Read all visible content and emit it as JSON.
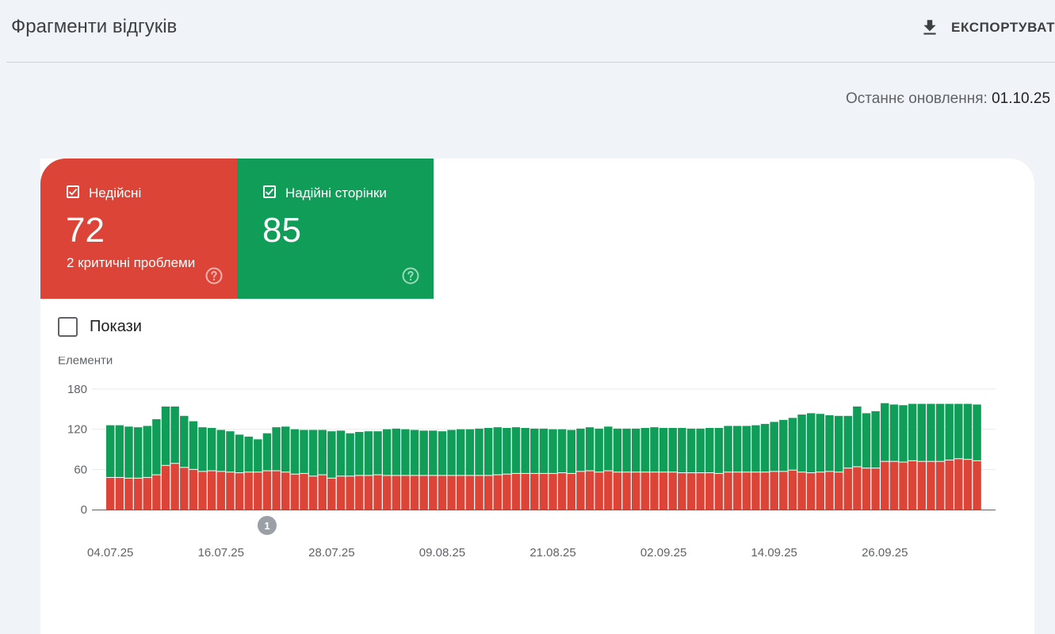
{
  "header": {
    "title": "Фрагменти відгуків",
    "export_label": "ЕКСПОРТУВАТИ"
  },
  "last_update": {
    "label": "Останнє оновлення:",
    "value": "01.10.25"
  },
  "tiles": {
    "invalid": {
      "label": "Недійсні",
      "count": "72",
      "subtitle": "2 критичні проблеми"
    },
    "valid": {
      "label": "Надійні сторінки",
      "count": "85"
    }
  },
  "show_toggle": {
    "label": "Покази"
  },
  "colors": {
    "invalid": "#db4437",
    "valid": "#0f9d58"
  },
  "chart_data": {
    "type": "bar",
    "stacked": true,
    "ylabel": "Елементи",
    "ylim": [
      0,
      180
    ],
    "yticks": [
      0,
      60,
      120,
      180
    ],
    "xtick_labels": [
      "04.07.25",
      "16.07.25",
      "28.07.25",
      "09.08.25",
      "21.08.25",
      "02.09.25",
      "14.09.25",
      "26.09.25"
    ],
    "annotation": {
      "label": "1",
      "category_index": 17
    },
    "series": [
      {
        "name": "Недійсні",
        "values": [
          48,
          48,
          47,
          47,
          48,
          52,
          66,
          69,
          63,
          60,
          57,
          58,
          57,
          56,
          55,
          56,
          56,
          58,
          58,
          56,
          53,
          54,
          50,
          52,
          47,
          50,
          50,
          51,
          51,
          52,
          51,
          51,
          51,
          51,
          51,
          51,
          51,
          51,
          51,
          51,
          51,
          51,
          52,
          53,
          54,
          54,
          54,
          54,
          54,
          55,
          54,
          57,
          58,
          56,
          58,
          56,
          56,
          56,
          56,
          56,
          56,
          56,
          55,
          55,
          55,
          55,
          54,
          56,
          56,
          56,
          56,
          56,
          57,
          57,
          59,
          56,
          55,
          56,
          57,
          56,
          62,
          64,
          62,
          62,
          72,
          72,
          71,
          73,
          72,
          72,
          72,
          74,
          76,
          75,
          73
        ]
      },
      {
        "name": "Надійні сторінки",
        "values": [
          78,
          78,
          77,
          76,
          77,
          83,
          88,
          85,
          77,
          72,
          66,
          64,
          62,
          61,
          57,
          53,
          49,
          56,
          65,
          68,
          67,
          65,
          69,
          67,
          70,
          68,
          64,
          65,
          66,
          65,
          69,
          70,
          69,
          68,
          67,
          67,
          66,
          68,
          69,
          69,
          70,
          71,
          71,
          69,
          69,
          68,
          67,
          67,
          66,
          65,
          65,
          64,
          65,
          65,
          66,
          65,
          65,
          65,
          66,
          67,
          66,
          66,
          67,
          66,
          66,
          67,
          68,
          69,
          69,
          69,
          70,
          72,
          74,
          77,
          78,
          86,
          89,
          87,
          84,
          84,
          78,
          90,
          82,
          85,
          87,
          85,
          85,
          85,
          86,
          86,
          86,
          84,
          82,
          83,
          84
        ]
      }
    ]
  }
}
